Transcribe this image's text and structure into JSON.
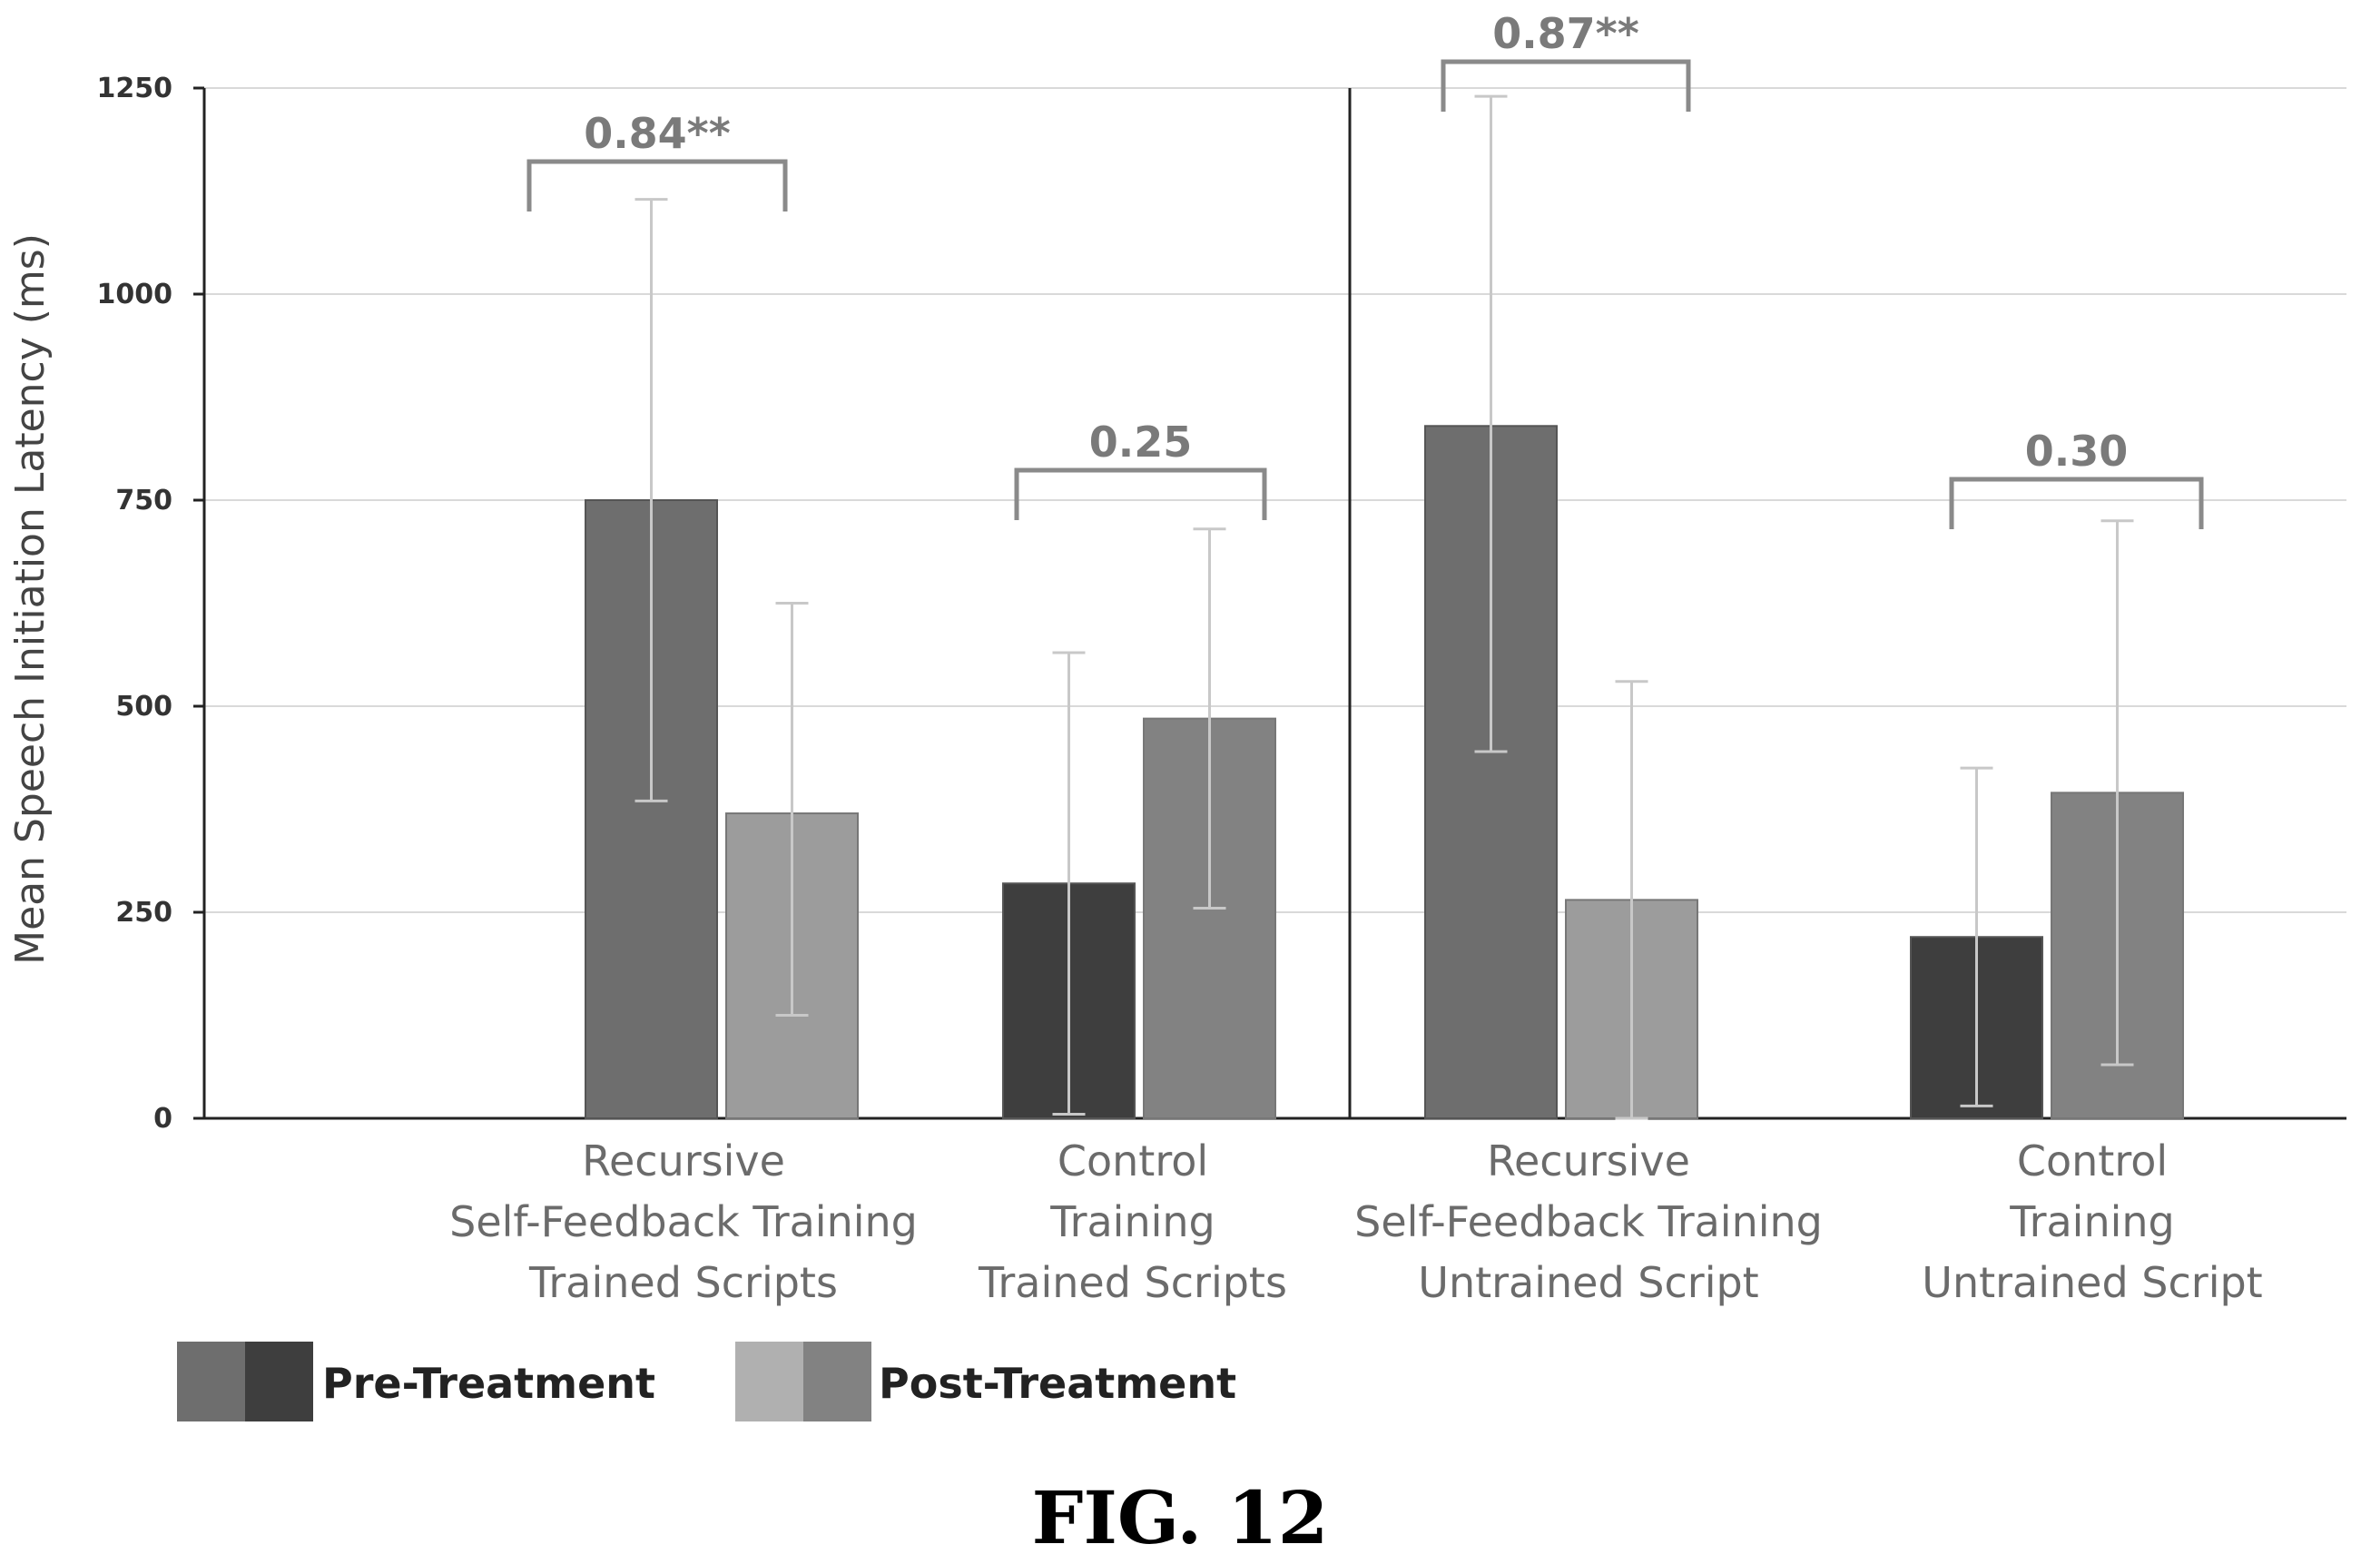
{
  "chart_data": {
    "type": "bar",
    "ylabel": "Mean Speech Initiation Latency (ms)",
    "ylim": [
      0,
      1250
    ],
    "yticks": [
      0,
      250,
      500,
      750,
      1000,
      1250
    ],
    "grid": true,
    "legend_position": "bottom-left",
    "groups": [
      {
        "label": [
          "Recursive",
          "Self-Feedback Training",
          "Trained Scripts"
        ],
        "pre": 750,
        "post": 370,
        "pre_err": [
          385,
          1115
        ],
        "post_err": [
          125,
          625
        ],
        "annotation": "0.84**",
        "pre_shade": "mid"
      },
      {
        "label": [
          "Control",
          "Training",
          "Trained Scripts"
        ],
        "pre": 285,
        "post": 485,
        "pre_err": [
          5,
          565
        ],
        "post_err": [
          255,
          715
        ],
        "annotation": "0.25",
        "pre_shade": "dark"
      },
      {
        "label": [
          "Recursive",
          "Self-Feedback Training",
          "Untrained Script"
        ],
        "pre": 840,
        "post": 265,
        "pre_err": [
          445,
          1240
        ],
        "post_err": [
          0,
          530
        ],
        "annotation": "0.87**",
        "pre_shade": "mid"
      },
      {
        "label": [
          "Control",
          "Training",
          "Untrained Script"
        ],
        "pre": 220,
        "post": 395,
        "pre_err": [
          15,
          425
        ],
        "post_err": [
          65,
          725
        ],
        "annotation": "0.30",
        "pre_shade": "dark"
      }
    ],
    "series": [
      {
        "name": "Pre-Treatment"
      },
      {
        "name": "Post-Treatment"
      }
    ],
    "colors": {
      "pre_mid": "#6e6e6e",
      "pre_dark": "#3e3e3e",
      "post": "#9c9c9c",
      "post_alt": "#828282",
      "error": "#c8c8c8",
      "bracket": "#8a8a8a",
      "grid": "#d9d9d9",
      "axis": "#222222"
    }
  },
  "figure_caption": "FIG. 12"
}
